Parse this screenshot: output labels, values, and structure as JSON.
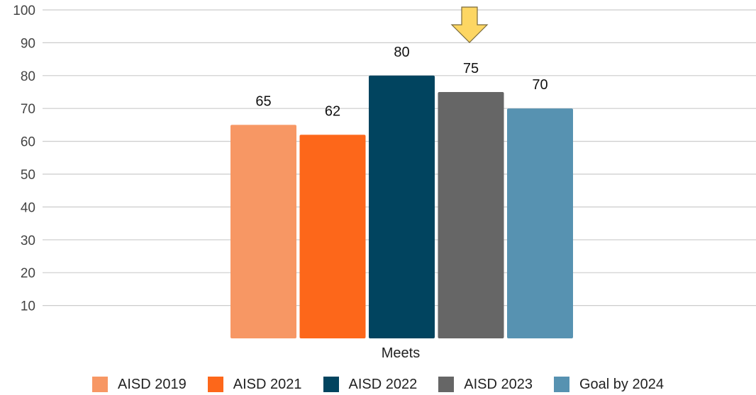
{
  "chart_data": {
    "type": "bar",
    "categories": [
      "Meets"
    ],
    "series": [
      {
        "name": "AISD 2019",
        "values": [
          65
        ],
        "color": "#f79764"
      },
      {
        "name": "AISD 2021",
        "values": [
          62
        ],
        "color": "#fd671a"
      },
      {
        "name": "AISD 2022",
        "values": [
          80
        ],
        "color": "#01445f"
      },
      {
        "name": "AISD 2023",
        "values": [
          75
        ],
        "color": "#666666"
      },
      {
        "name": "Goal by 2024",
        "values": [
          70
        ],
        "color": "#5792b1"
      }
    ],
    "data_labels": [
      "65",
      "62",
      "80",
      "75",
      "70"
    ],
    "y_ticks": [
      "10",
      "20",
      "30",
      "40",
      "50",
      "60",
      "70",
      "80",
      "90",
      "100"
    ],
    "ylim": [
      0,
      100
    ],
    "grid": true,
    "legend_position": "bottom",
    "annotation": {
      "icon": "down-arrow-icon",
      "points_to": "AISD 2023",
      "color": "#fdd663"
    }
  }
}
